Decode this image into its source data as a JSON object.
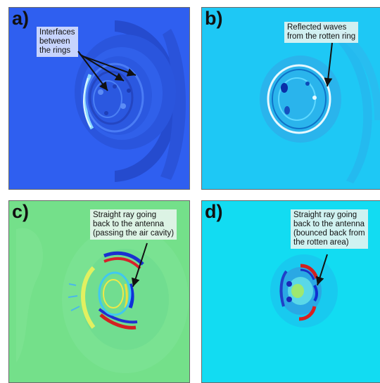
{
  "panels": [
    {
      "id": "a",
      "label": "a)",
      "annotation": "Interfaces\nbetween\nthe rings"
    },
    {
      "id": "b",
      "label": "b)",
      "annotation": "Reflected waves\nfrom the rotten ring"
    },
    {
      "id": "c",
      "label": "c)",
      "annotation": "Straight ray going\nback to the antenna\n(passing the air cavity)"
    },
    {
      "id": "d",
      "label": "d)",
      "annotation": "Straight ray going\nback to the antenna\n(bounced back from\nthe rotten area)"
    }
  ],
  "colors": {
    "a_background": "#2f5ff0",
    "b_background": "#1ec8f5",
    "c_background": "#74e08a",
    "d_background": "#12dcf2",
    "arrow": "#111111"
  }
}
